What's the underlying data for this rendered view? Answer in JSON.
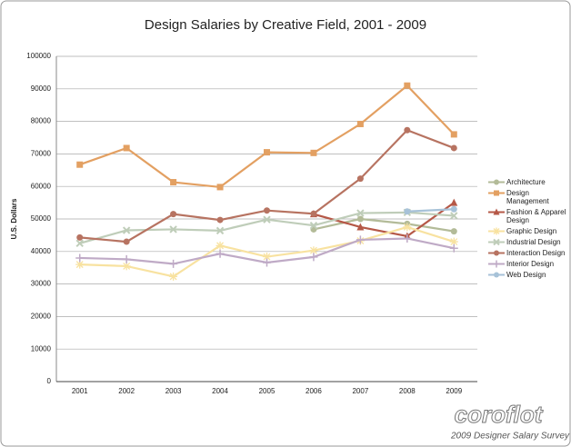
{
  "chart_data": {
    "type": "line",
    "title": "Design Salaries by Creative Field, 2001 - 2009",
    "y_label": "U.S. Dollars",
    "categories": [
      "2001",
      "2002",
      "2003",
      "2004",
      "2005",
      "2006",
      "2007",
      "2008",
      "2009"
    ],
    "ylim": [
      0,
      100000
    ],
    "yticks": [
      0,
      10000,
      20000,
      30000,
      40000,
      50000,
      60000,
      70000,
      80000,
      90000,
      100000
    ],
    "grid": true,
    "legend": "right",
    "watermark": "coroflot",
    "footer": "2009 Designer Salary Survey",
    "series": [
      {
        "name": "Architecture",
        "color": "#b3bb98",
        "marker": "circle",
        "values": [
          null,
          null,
          null,
          null,
          null,
          46800,
          50000,
          48500,
          46200
        ]
      },
      {
        "name": "Design Management",
        "color": "#e3a062",
        "marker": "square",
        "values": [
          66700,
          71800,
          61300,
          59800,
          70500,
          70300,
          79200,
          91000,
          76000
        ]
      },
      {
        "name": "Fashion & Apparel Design",
        "color": "#b55847",
        "marker": "triangle",
        "values": [
          null,
          null,
          null,
          null,
          null,
          51500,
          47500,
          44700,
          55000
        ]
      },
      {
        "name": "Graphic Design",
        "color": "#f8e2a0",
        "marker": "star",
        "values": [
          36000,
          35500,
          32300,
          41800,
          38400,
          40300,
          43300,
          47500,
          43000
        ]
      },
      {
        "name": "Industrial Design",
        "color": "#bfcdb9",
        "marker": "x",
        "values": [
          42500,
          46500,
          46800,
          46400,
          49800,
          48000,
          51800,
          52000,
          51000
        ]
      },
      {
        "name": "Interaction Design",
        "color": "#b77361",
        "marker": "circle",
        "values": [
          44300,
          43000,
          51500,
          49700,
          52600,
          51600,
          62400,
          77300,
          71800
        ]
      },
      {
        "name": "Interior Design",
        "color": "#bfaac6",
        "marker": "plus",
        "values": [
          38000,
          37600,
          36200,
          39300,
          36600,
          38300,
          43600,
          44000,
          41000
        ]
      },
      {
        "name": "Web Design",
        "color": "#a7c2d8",
        "marker": "circle",
        "values": [
          null,
          null,
          null,
          null,
          null,
          null,
          null,
          52300,
          53000
        ]
      }
    ]
  }
}
